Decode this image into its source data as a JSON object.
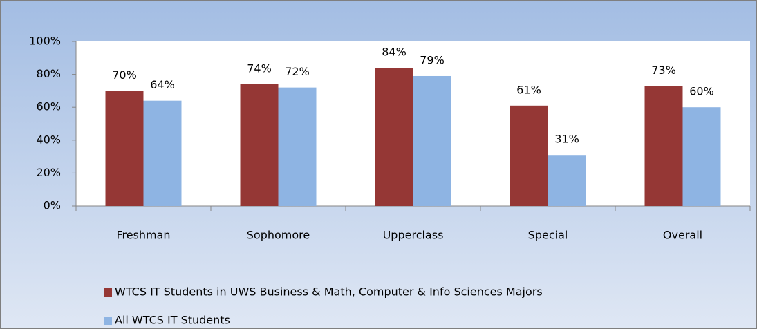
{
  "chart_data": {
    "type": "bar",
    "categories": [
      "Freshman",
      "Sophomore",
      "Upperclass",
      "Special",
      "Overall"
    ],
    "series": [
      {
        "name": "WTCS IT Students in UWS Business & Math, Computer & Info Sciences Majors",
        "color": "#953735",
        "values": [
          70,
          74,
          84,
          61,
          73
        ],
        "value_labels": [
          "70%",
          "74%",
          "84%",
          "61%",
          "73%"
        ]
      },
      {
        "name": "All WTCS IT Students",
        "color": "#8eb4e3",
        "values": [
          64,
          72,
          79,
          31,
          60
        ],
        "value_labels": [
          "64%",
          "72%",
          "79%",
          "31%",
          "60%"
        ]
      }
    ],
    "ylim": [
      0,
      100
    ],
    "yticks": [
      {
        "value": 0,
        "label": "0%"
      },
      {
        "value": 20,
        "label": "20%"
      },
      {
        "value": 40,
        "label": "40%"
      },
      {
        "value": 60,
        "label": "60%"
      },
      {
        "value": 80,
        "label": "80%"
      },
      {
        "value": 100,
        "label": "100%"
      }
    ],
    "legend": "bottom"
  }
}
